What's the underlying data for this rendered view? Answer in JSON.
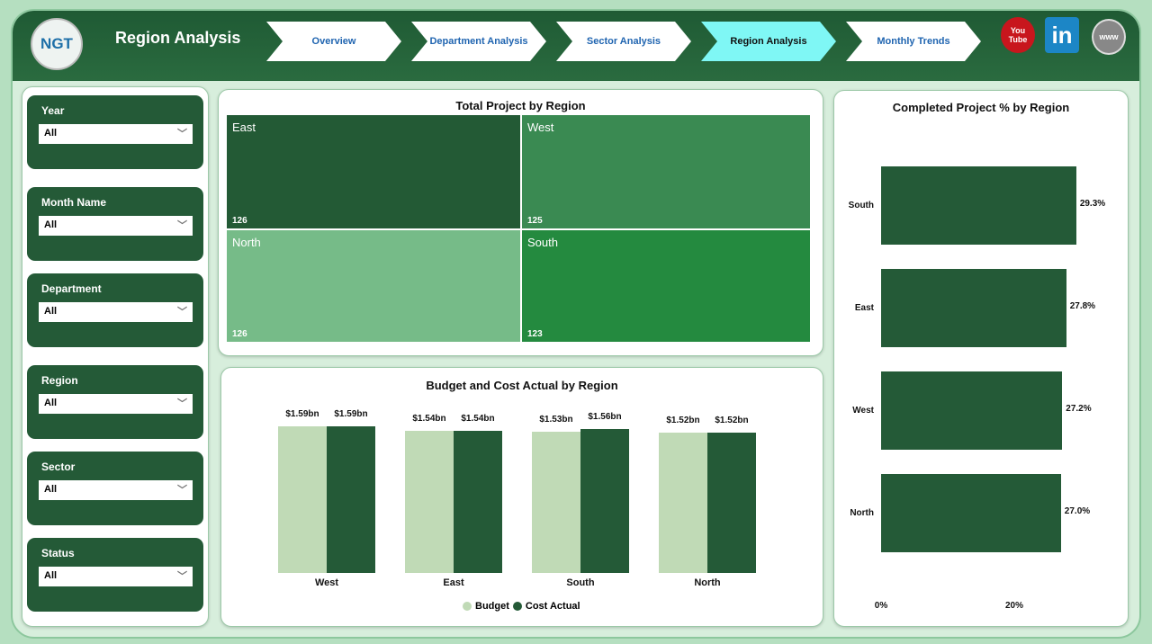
{
  "header": {
    "logo": "NGT",
    "title": "Region Analysis",
    "tabs": [
      {
        "label": "Overview",
        "active": false
      },
      {
        "label": "Department Analysis",
        "active": false
      },
      {
        "label": "Sector Analysis",
        "active": false
      },
      {
        "label": "Region Analysis",
        "active": true
      },
      {
        "label": "Monthly Trends",
        "active": false
      }
    ],
    "social": [
      {
        "icon": "youtube-icon",
        "label": "You Tube"
      },
      {
        "icon": "linkedin-icon",
        "label": "in"
      },
      {
        "icon": "globe-icon",
        "label": "www"
      }
    ]
  },
  "filters": [
    {
      "label": "Year",
      "value": "All"
    },
    {
      "label": "Month Name",
      "value": "All"
    },
    {
      "label": "Department",
      "value": "All"
    },
    {
      "label": "Region",
      "value": "All"
    },
    {
      "label": "Sector",
      "value": "All"
    },
    {
      "label": "Status",
      "value": "All"
    }
  ],
  "colors": {
    "dark": "#245a37",
    "light": "#c0dab6",
    "accent": "#7ff7f5"
  },
  "chart_data": [
    {
      "type": "treemap",
      "title": "Total Project by Region",
      "categories": [
        "East",
        "West",
        "North",
        "South"
      ],
      "values": [
        126,
        125,
        126,
        123
      ],
      "colors": [
        "#235a35",
        "#3a8a52",
        "#76bb88",
        "#248a3f"
      ]
    },
    {
      "type": "bar",
      "title": "Budget and Cost Actual by Region",
      "categories": [
        "West",
        "East",
        "South",
        "North"
      ],
      "series": [
        {
          "name": "Budget",
          "values": [
            1.59,
            1.54,
            1.53,
            1.52
          ],
          "labels": [
            "$1.59bn",
            "$1.54bn",
            "$1.53bn",
            "$1.52bn"
          ],
          "color": "#c0dab6"
        },
        {
          "name": "Cost Actual",
          "values": [
            1.59,
            1.54,
            1.56,
            1.52
          ],
          "labels": [
            "$1.59bn",
            "$1.54bn",
            "$1.56bn",
            "$1.52bn"
          ],
          "color": "#245a37"
        }
      ],
      "unit": "$bn",
      "legend": "bottom-center"
    },
    {
      "type": "bar-horizontal",
      "title": "Completed Project % by Region",
      "categories": [
        "South",
        "East",
        "West",
        "North"
      ],
      "values": [
        29.3,
        27.8,
        27.2,
        27.0
      ],
      "labels": [
        "29.3%",
        "27.8%",
        "27.2%",
        "27.0%"
      ],
      "xticks": [
        "0%",
        "20%"
      ],
      "xtick_values": [
        0,
        20
      ],
      "color": "#245a37"
    }
  ]
}
